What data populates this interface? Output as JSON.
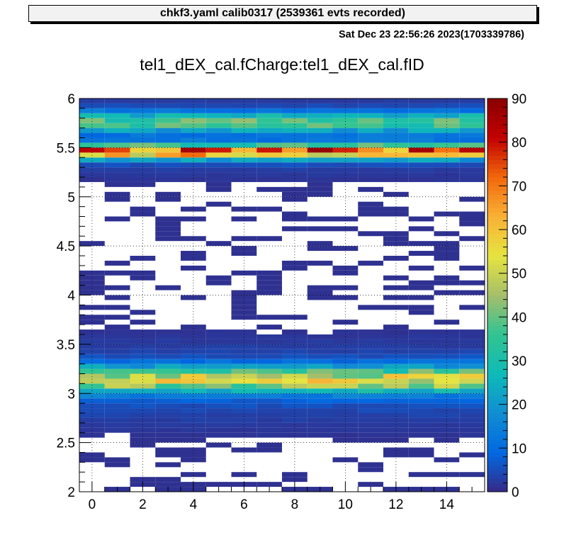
{
  "header": {
    "run_box": "chkf3.yaml  calib0317 (2539361 evts recorded)",
    "timestamp": "Sat Dec 23 22:56:26 2023(1703339786)"
  },
  "chart_data": {
    "type": "heatmap",
    "title": "tel1_dEX_cal.fCharge:tel1_dEX_cal.fID",
    "xlabel": "",
    "ylabel": "",
    "xlim": [
      -0.5,
      15.5
    ],
    "ylim": [
      2,
      6
    ],
    "grid": true,
    "x_bins": 16,
    "y_bins": 80,
    "x_ticks": [
      "0",
      "2",
      "4",
      "6",
      "8",
      "10",
      "12",
      "14"
    ],
    "y_ticks": [
      "2",
      "2.5",
      "3",
      "3.5",
      "4",
      "4.5",
      "5",
      "5.5",
      "6"
    ],
    "colorbar": {
      "range": [
        0,
        90
      ],
      "ticks": [
        "0",
        "10",
        "20",
        "30",
        "40",
        "50",
        "60",
        "70",
        "80",
        "90"
      ],
      "palette": "kBird"
    },
    "bands": [
      {
        "center": 5.46,
        "width": 0.05,
        "peak": 68
      },
      {
        "center": 5.76,
        "width": 0.07,
        "peak": 32
      },
      {
        "center": 3.14,
        "width": 0.09,
        "peak": 46
      }
    ],
    "peak_max": 88,
    "peak_bin_x": 9
  },
  "colors": {
    "palette": [
      "#352a87",
      "#0268e1",
      "#108ed2",
      "#0fbab7",
      "#31c492",
      "#a5be6b",
      "#e6e440",
      "#f9b135",
      "#f2680d",
      "#c20000",
      "#8b0000"
    ],
    "frame": "#000000",
    "background": "#ffffff"
  }
}
